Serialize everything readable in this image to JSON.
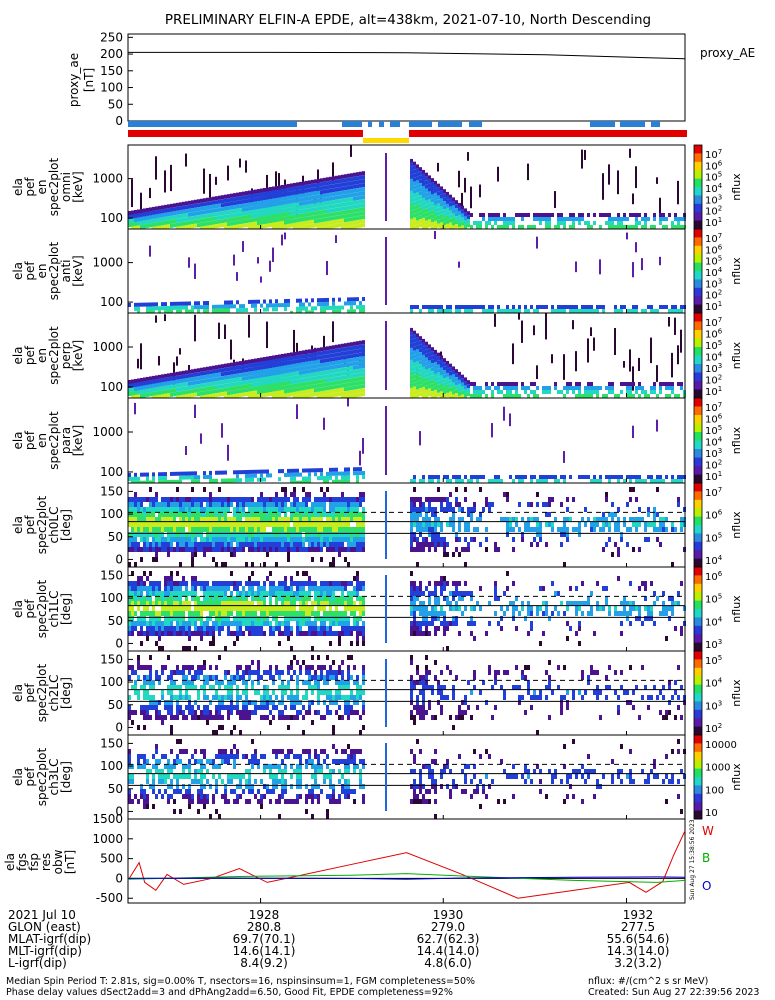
{
  "title": "PRELIMINARY ELFIN-A EPDE, alt=438km, 2021-07-10, North Descending",
  "colors": {
    "blue_bar": "#2a7fd6",
    "red_bar": "#e00000",
    "yellow_bar": "#ffd800",
    "dark": "#2b0833",
    "purple": "#5b1fa8",
    "blue": "#2266dd",
    "cyan": "#22c8e0",
    "green": "#2fe06a",
    "yellow": "#e8e820",
    "red": "#e01010"
  },
  "panels": [
    {
      "label": [
        "ela",
        "pef",
        "en",
        "spec2plot",
        "omni",
        "[keV]"
      ],
      "type": "energy",
      "ticks": [
        "1000",
        "100"
      ],
      "cb_ticks": [
        "10^7",
        "10^6",
        "10^5",
        "10^4",
        "10^3",
        "10^2",
        "10^1"
      ],
      "cb_unit": "nflux"
    },
    {
      "label": [
        "ela",
        "pef",
        "en",
        "spec2plot",
        "anti",
        "[keV]"
      ],
      "type": "energy",
      "ticks": [
        "1000",
        "100"
      ],
      "cb_ticks": [
        "10^7",
        "10^6",
        "10^5",
        "10^4",
        "10^3",
        "10^2",
        "10^1"
      ],
      "cb_unit": "nflux"
    },
    {
      "label": [
        "ela",
        "pef",
        "en",
        "spec2plot",
        "perp",
        "[keV]"
      ],
      "type": "energy",
      "ticks": [
        "1000",
        "100"
      ],
      "cb_ticks": [
        "10^7",
        "10^6",
        "10^5",
        "10^4",
        "10^3",
        "10^2",
        "10^1"
      ],
      "cb_unit": "nflux"
    },
    {
      "label": [
        "ela",
        "pef",
        "en",
        "spec2plot",
        "para",
        "[keV]"
      ],
      "type": "energy",
      "ticks": [
        "1000",
        "100"
      ],
      "cb_ticks": [
        "10^7",
        "10^6",
        "10^5",
        "10^4",
        "10^3",
        "10^2",
        "10^1"
      ],
      "cb_unit": "nflux"
    },
    {
      "label": [
        "ela",
        "pef",
        "spec2plot",
        "ch0LC",
        "[deg]"
      ],
      "type": "pa",
      "ticks": [
        "150",
        "100",
        "50",
        "0"
      ],
      "cb_ticks": [
        "10^7",
        "10^6",
        "10^5",
        "10^4"
      ],
      "cb_unit": "nflux"
    },
    {
      "label": [
        "ela",
        "pef",
        "spec2plot",
        "ch1LC",
        "[deg]"
      ],
      "type": "pa",
      "ticks": [
        "150",
        "100",
        "50",
        "0"
      ],
      "cb_ticks": [
        "10^6",
        "10^5",
        "10^4",
        "10^3"
      ],
      "cb_unit": "nflux"
    },
    {
      "label": [
        "ela",
        "pef",
        "spec2plot",
        "ch2LC",
        "[deg]"
      ],
      "type": "pa",
      "ticks": [
        "150",
        "100",
        "50",
        "0"
      ],
      "cb_ticks": [
        "10^5",
        "10^4",
        "10^3",
        "10^2"
      ],
      "cb_unit": "nflux"
    },
    {
      "label": [
        "ela",
        "pef",
        "spec2plot",
        "ch3LC",
        "[deg]"
      ],
      "type": "pa",
      "ticks": [
        "150",
        "100",
        "50",
        "0"
      ],
      "cb_ticks": [
        "10000",
        "1000",
        "100",
        "10"
      ],
      "cb_unit": "nflux"
    }
  ],
  "chart_data": [
    {
      "type": "line",
      "title": "",
      "ylabel": "proxy_ae [nT]",
      "y_ticks": [
        "250",
        "200",
        "150",
        "100",
        "50",
        "0"
      ],
      "ylim": [
        0,
        260
      ],
      "series": [
        {
          "name": "proxy_AE",
          "x": [
            0,
            0.25,
            0.5,
            0.75,
            1.0
          ],
          "values": [
            205,
            205,
            204,
            198,
            186
          ]
        }
      ]
    },
    {
      "type": "line",
      "ylabel": "ela fgs fsp res obw [nT]",
      "y_ticks": [
        "1500",
        "1000",
        "500",
        "0",
        "-500"
      ],
      "ylim": [
        -620,
        1500
      ],
      "series": [
        {
          "name": "W",
          "x": [
            0,
            0.02,
            0.03,
            0.05,
            0.07,
            0.1,
            0.15,
            0.2,
            0.25,
            0.3,
            0.4,
            0.5,
            0.6,
            0.7,
            0.8,
            0.9,
            0.93,
            0.96,
            0.98,
            1.0
          ],
          "values": [
            -50,
            400,
            -100,
            -300,
            100,
            -150,
            0,
            250,
            -100,
            50,
            350,
            650,
            100,
            -500,
            -300,
            -100,
            -350,
            -80,
            600,
            1200
          ]
        },
        {
          "name": "B",
          "x": [
            0,
            0.2,
            0.4,
            0.5,
            0.6,
            0.8,
            0.95,
            1.0
          ],
          "values": [
            -20,
            50,
            80,
            120,
            60,
            -50,
            -100,
            -50
          ]
        },
        {
          "name": "O",
          "x": [
            0,
            0.2,
            0.4,
            0.5,
            0.6,
            0.8,
            0.95,
            1.0
          ],
          "values": [
            0,
            10,
            0,
            -20,
            10,
            30,
            40,
            30
          ]
        }
      ]
    }
  ],
  "time_labels": [
    "1928",
    "1930",
    "1932"
  ],
  "table": {
    "row_labels": [
      "2021 Jul 10",
      "GLON (east)",
      "MLAT-igrf(dip)",
      "MLT-igrf(dip)",
      "L-igrf(dip)"
    ],
    "columns": [
      [
        "1928",
        "280.8",
        "69.7(70.1)",
        "14.6(14.1)",
        "8.4(9.2)"
      ],
      [
        "1930",
        "279.0",
        "62.7(62.3)",
        "14.4(14.0)",
        "4.8(6.0)"
      ],
      [
        "1932",
        "277.5",
        "55.6(54.6)",
        "14.3(14.0)",
        "3.2(3.2)"
      ]
    ]
  },
  "footer": {
    "left1": "Median Spin Period T: 2.81s, sig=0.00% T, nsectors=16, nspinsinsum=1, FGM completeness=50%",
    "left2": "Phase delay values dSect2add=3 and dPhAng2add=6.50, Good Fit, EPDE completeness=92%",
    "right1": "nflux: #/(cm^2 s sr MeV)",
    "right2": "Created: Sun Aug 27 22:39:56 2023",
    "side_stamp": "Sun Aug 27 15:38:56 2023"
  },
  "legend": {
    "proxy": "proxy_AE",
    "w": "W",
    "b": "B",
    "o": "O"
  }
}
